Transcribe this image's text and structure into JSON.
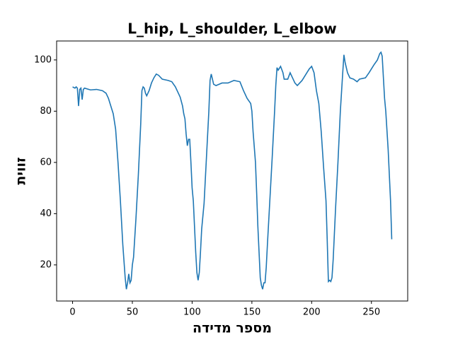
{
  "chart_data": {
    "type": "line",
    "title": "L_hip, L_shoulder, L_elbow",
    "x_label": "מספר מדידה",
    "y_label": "זווית",
    "x": [
      0,
      2,
      3,
      4,
      5,
      6,
      7,
      8,
      9,
      10,
      15,
      20,
      25,
      28,
      30,
      32,
      34,
      36,
      38,
      40,
      42,
      44,
      45,
      46,
      47,
      48,
      49,
      50,
      51,
      53,
      55,
      57,
      58,
      59,
      60,
      61,
      62,
      64,
      66,
      68,
      70,
      72,
      75,
      80,
      83,
      86,
      90,
      92,
      93,
      94,
      95,
      96,
      97,
      98,
      99,
      100,
      101,
      102,
      103,
      104,
      105,
      106,
      107,
      108,
      110,
      112,
      114,
      115,
      116,
      118,
      120,
      125,
      130,
      135,
      140,
      143,
      146,
      149,
      150,
      151,
      152,
      153,
      154,
      155,
      156,
      157,
      158,
      159,
      160,
      161,
      162,
      163,
      165,
      167,
      169,
      170,
      171,
      172,
      174,
      176,
      177,
      180,
      182,
      184,
      186,
      188,
      192,
      196,
      198,
      200,
      202,
      204,
      206,
      208,
      210,
      212,
      213,
      214,
      215,
      216,
      217,
      218,
      219,
      220,
      222,
      224,
      226,
      227,
      228,
      230,
      232,
      235,
      238,
      240,
      245,
      248,
      252,
      255,
      257,
      258,
      259,
      261,
      262,
      264,
      266,
      267
    ],
    "series": [
      {
        "color": "#1f77b4",
        "values": [
          89.5,
          89,
          89.5,
          89,
          82,
          88.5,
          89,
          84.5,
          88.5,
          89,
          88.3,
          88.5,
          88,
          87,
          85,
          82,
          79,
          73,
          60,
          45,
          28,
          15,
          10.5,
          13,
          16.5,
          13,
          14,
          20,
          23,
          38,
          55,
          75,
          88,
          89.5,
          89,
          87,
          86,
          88,
          91,
          93,
          94.5,
          94,
          92.5,
          92,
          91.5,
          89.5,
          85.5,
          82,
          79,
          77,
          71,
          66.5,
          69,
          69,
          60,
          50,
          45,
          35,
          25,
          17,
          14,
          17,
          25,
          34,
          44,
          62,
          80,
          92,
          94.5,
          90.5,
          90,
          91,
          91,
          92,
          91.5,
          88,
          85,
          83,
          80,
          72,
          66,
          60,
          48,
          35,
          25,
          15,
          12,
          10.5,
          13,
          13,
          19,
          28,
          45,
          62,
          80,
          90,
          97,
          96,
          97.5,
          95,
          92.5,
          92.5,
          95,
          93,
          91,
          90,
          92,
          95,
          96.5,
          97.5,
          95,
          88,
          83,
          72,
          58,
          45,
          30,
          13.5,
          14,
          13.5,
          15,
          22,
          32,
          42,
          60,
          80,
          95,
          102,
          99,
          95,
          93,
          92.5,
          91.5,
          92.5,
          93,
          95,
          98,
          100,
          102.5,
          103,
          101.5,
          85,
          80,
          65,
          45,
          30
        ]
      }
    ],
    "xlim": [
      -13.35,
      280.35
    ],
    "ylim": [
      5.9,
      107.4
    ],
    "xticks": [
      0,
      50,
      100,
      150,
      200,
      250
    ],
    "yticks": [
      20,
      40,
      60,
      80,
      100
    ]
  }
}
